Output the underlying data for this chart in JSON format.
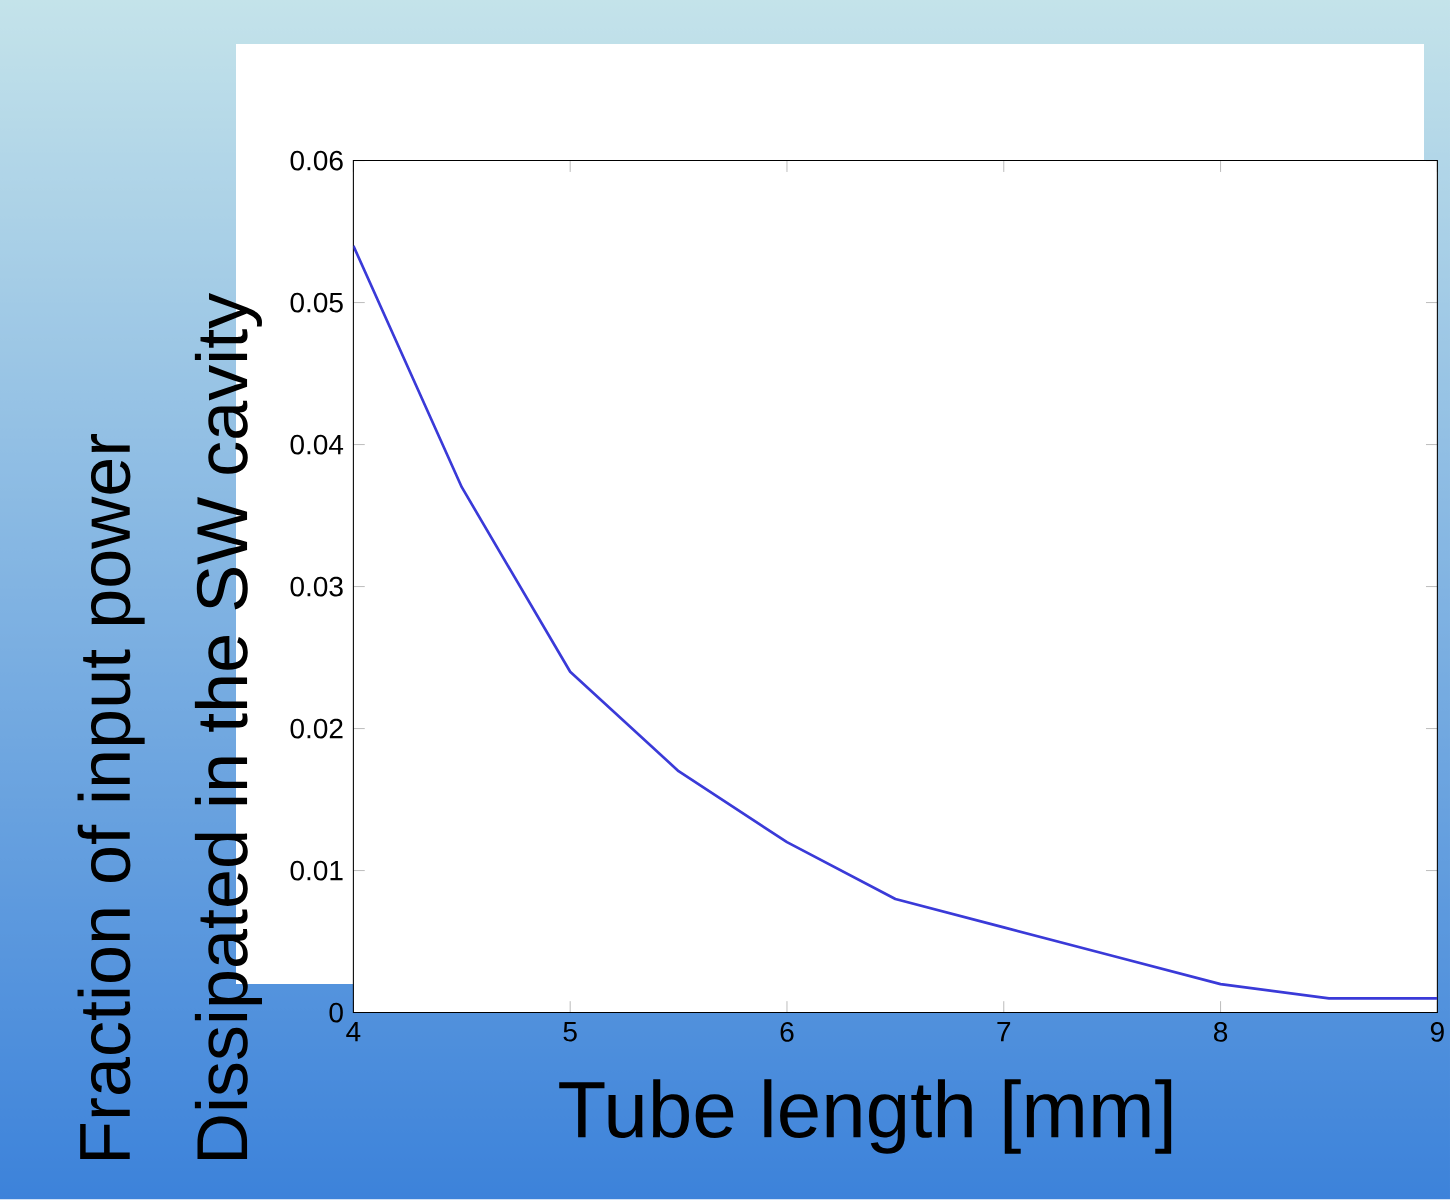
{
  "chart_data": {
    "type": "line",
    "xlabel": "Tube length [mm]",
    "ylabel": "Fraction of input power\nDissipated in the SW cavity",
    "x": [
      4,
      4.5,
      5,
      5.5,
      6,
      6.5,
      7,
      7.5,
      8,
      8.5,
      9
    ],
    "series": [
      {
        "color": "#3a3ad8",
        "values": [
          0.054,
          0.037,
          0.024,
          0.017,
          0.012,
          0.008,
          0.006,
          0.004,
          0.002,
          0.001,
          0.001
        ]
      }
    ],
    "xlim": [
      4,
      9
    ],
    "ylim": [
      0,
      0.06
    ],
    "xticks": [
      4,
      5,
      6,
      7,
      8,
      9
    ],
    "yticks": [
      0,
      0.01,
      0.02,
      0.03,
      0.04,
      0.05,
      0.06
    ],
    "grid": false,
    "marker": "none",
    "line_style": "solid"
  }
}
